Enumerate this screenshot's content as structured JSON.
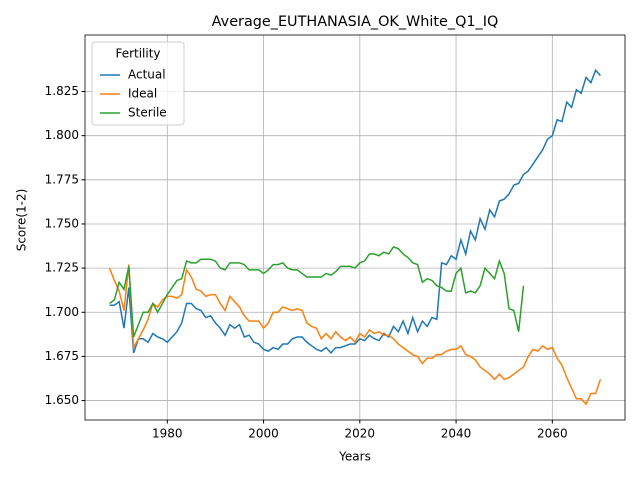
{
  "chart_data": {
    "type": "line",
    "title": "Average_EUTHANASIA_OK_White_Q1_IQ",
    "xlabel": "Years",
    "ylabel": "Score(1-2)",
    "legend_title": "Fertility",
    "legend": "upper left",
    "grid": true,
    "xlim": [
      1962.9,
      2075.1
    ],
    "xticks": [
      1980,
      2000,
      2020,
      2040,
      2060
    ],
    "ylim": [
      1.639,
      1.857
    ],
    "yticks": [
      {
        "value": 1.65,
        "label": "1.650"
      },
      {
        "value": 1.675,
        "label": "1.675"
      },
      {
        "value": 1.7,
        "label": "1.700"
      },
      {
        "value": 1.725,
        "label": "1.725"
      },
      {
        "value": 1.75,
        "label": "1.750"
      },
      {
        "value": 1.775,
        "label": "1.775"
      },
      {
        "value": 1.8,
        "label": "1.800"
      },
      {
        "value": 1.825,
        "label": "1.825"
      }
    ],
    "x": [
      1968,
      1969,
      1970,
      1971,
      1972,
      1973,
      1974,
      1975,
      1976,
      1977,
      1978,
      1979,
      1980,
      1981,
      1982,
      1983,
      1984,
      1985,
      1986,
      1987,
      1988,
      1989,
      1990,
      1991,
      1992,
      1993,
      1994,
      1995,
      1996,
      1997,
      1998,
      1999,
      2000,
      2001,
      2002,
      2003,
      2004,
      2005,
      2006,
      2007,
      2008,
      2009,
      2010,
      2011,
      2012,
      2013,
      2014,
      2015,
      2016,
      2017,
      2018,
      2019,
      2020,
      2021,
      2022,
      2023,
      2024,
      2025,
      2026,
      2027,
      2028,
      2029,
      2030,
      2031,
      2032,
      2033,
      2034,
      2035,
      2036,
      2037,
      2038,
      2039,
      2040,
      2041,
      2042,
      2043,
      2044,
      2045,
      2046,
      2047,
      2048,
      2049,
      2050,
      2051,
      2052,
      2053,
      2054,
      2055,
      2056,
      2057,
      2058,
      2059,
      2060,
      2061,
      2062,
      2063,
      2064,
      2065,
      2066,
      2067,
      2068,
      2069,
      2070
    ],
    "series": [
      {
        "name": "Actual",
        "color": "#1f77b4",
        "values": [
          1.704,
          1.704,
          1.706,
          1.691,
          1.714,
          1.677,
          1.685,
          1.685,
          1.683,
          1.688,
          1.686,
          1.685,
          1.683,
          1.686,
          1.689,
          1.694,
          1.705,
          1.705,
          1.702,
          1.701,
          1.697,
          1.698,
          1.694,
          1.691,
          1.687,
          1.693,
          1.691,
          1.693,
          1.686,
          1.687,
          1.683,
          1.682,
          1.679,
          1.678,
          1.68,
          1.679,
          1.682,
          1.682,
          1.685,
          1.686,
          1.686,
          1.683,
          1.681,
          1.679,
          1.678,
          1.68,
          1.677,
          1.68,
          1.68,
          1.681,
          1.682,
          1.682,
          1.685,
          1.684,
          1.687,
          1.685,
          1.684,
          1.688,
          1.686,
          1.692,
          1.689,
          1.695,
          1.688,
          1.697,
          1.689,
          1.695,
          1.692,
          1.697,
          1.696,
          1.728,
          1.727,
          1.732,
          1.73,
          1.741,
          1.733,
          1.746,
          1.741,
          1.753,
          1.747,
          1.758,
          1.754,
          1.763,
          1.764,
          1.767,
          1.772,
          1.773,
          1.778,
          1.78,
          1.784,
          1.788,
          1.792,
          1.798,
          1.8,
          1.809,
          1.808,
          1.819,
          1.816,
          1.826,
          1.824,
          1.833,
          1.83,
          1.837,
          1.834
        ]
      },
      {
        "name": "Ideal",
        "color": "#ff7f0e",
        "values": [
          1.725,
          1.718,
          1.712,
          1.701,
          1.727,
          1.68,
          1.685,
          1.69,
          1.696,
          1.705,
          1.703,
          1.707,
          1.709,
          1.709,
          1.708,
          1.71,
          1.724,
          1.72,
          1.713,
          1.712,
          1.709,
          1.71,
          1.71,
          1.705,
          1.701,
          1.709,
          1.706,
          1.703,
          1.698,
          1.695,
          1.695,
          1.695,
          1.691,
          1.694,
          1.7,
          1.7,
          1.703,
          1.702,
          1.701,
          1.702,
          1.701,
          1.694,
          1.692,
          1.691,
          1.685,
          1.688,
          1.685,
          1.689,
          1.686,
          1.684,
          1.686,
          1.683,
          1.688,
          1.686,
          1.69,
          1.688,
          1.689,
          1.687,
          1.687,
          1.685,
          1.682,
          1.68,
          1.678,
          1.676,
          1.675,
          1.671,
          1.674,
          1.674,
          1.676,
          1.676,
          1.678,
          1.679,
          1.679,
          1.681,
          1.676,
          1.675,
          1.673,
          1.669,
          1.667,
          1.665,
          1.662,
          1.665,
          1.662,
          1.663,
          1.665,
          1.667,
          1.669,
          1.675,
          1.679,
          1.678,
          1.681,
          1.679,
          1.68,
          1.674,
          1.67,
          1.663,
          1.657,
          1.651,
          1.651,
          1.648,
          1.654,
          1.654,
          1.662
        ]
      },
      {
        "name": "Sterile",
        "color": "#2ca02c",
        "values": [
          1.705,
          1.707,
          1.717,
          1.713,
          1.726,
          1.686,
          1.693,
          1.7,
          1.7,
          1.705,
          1.7,
          1.705,
          1.71,
          1.714,
          1.718,
          1.719,
          1.729,
          1.728,
          1.728,
          1.73,
          1.73,
          1.73,
          1.729,
          1.725,
          1.724,
          1.728,
          1.728,
          1.728,
          1.727,
          1.724,
          1.724,
          1.724,
          1.722,
          1.724,
          1.727,
          1.727,
          1.728,
          1.725,
          1.724,
          1.724,
          1.722,
          1.72,
          1.72,
          1.72,
          1.72,
          1.722,
          1.721,
          1.723,
          1.726,
          1.726,
          1.726,
          1.725,
          1.728,
          1.729,
          1.733,
          1.733,
          1.732,
          1.734,
          1.733,
          1.737,
          1.736,
          1.733,
          1.731,
          1.728,
          1.727,
          1.717,
          1.719,
          1.718,
          1.715,
          1.714,
          1.712,
          1.712,
          1.722,
          1.725,
          1.711,
          1.712,
          1.711,
          1.715,
          1.725,
          1.722,
          1.719,
          1.729,
          1.722,
          1.702,
          1.701,
          1.689,
          1.715,
          null,
          null,
          null,
          null,
          null,
          null,
          null,
          null,
          null,
          null,
          null,
          null,
          null,
          null,
          null,
          null
        ]
      }
    ]
  }
}
